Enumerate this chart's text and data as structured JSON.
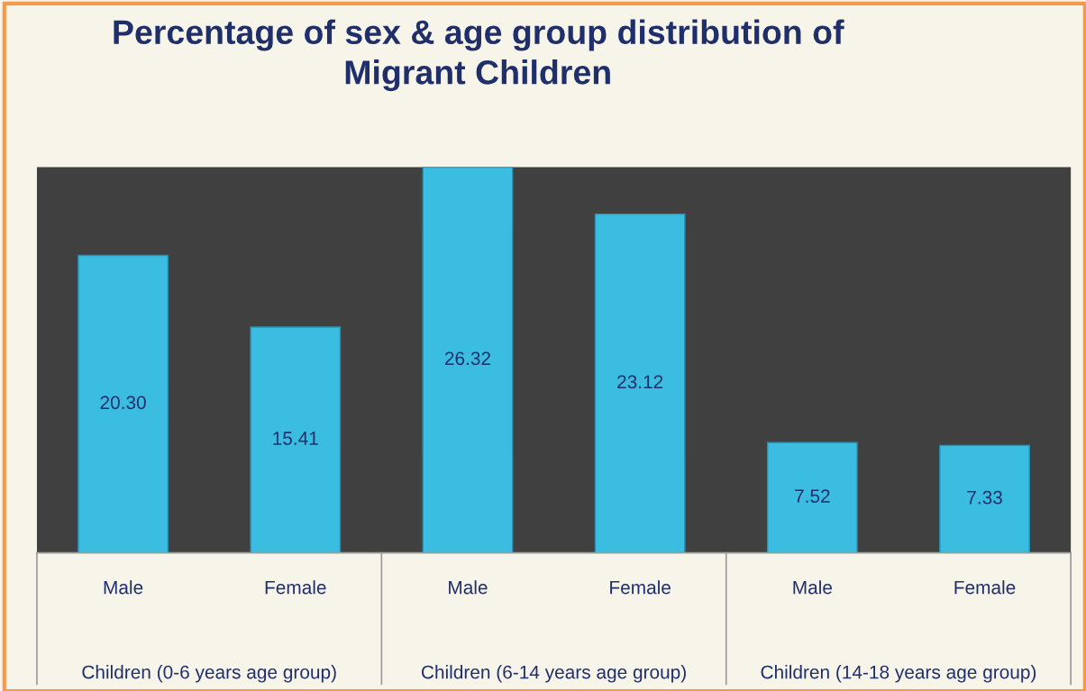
{
  "chart_data": {
    "type": "bar",
    "title": "Percentage of sex & age group distribution of\nMigrant Children",
    "categories": [
      "Male",
      "Female",
      "Male",
      "Female",
      "Male",
      "Female"
    ],
    "values": [
      20.3,
      15.41,
      26.32,
      23.12,
      7.52,
      7.33
    ],
    "value_labels": [
      "20.30",
      "15.41",
      "26.32",
      "23.12",
      "7.52",
      "7.33"
    ],
    "color": "#3bbde2",
    "annotations": [
      "Children (0-6 years age group)",
      "Children (6-14 years age group)",
      "Children (14-18 years age group)"
    ],
    "tick_labels": "x"
  }
}
